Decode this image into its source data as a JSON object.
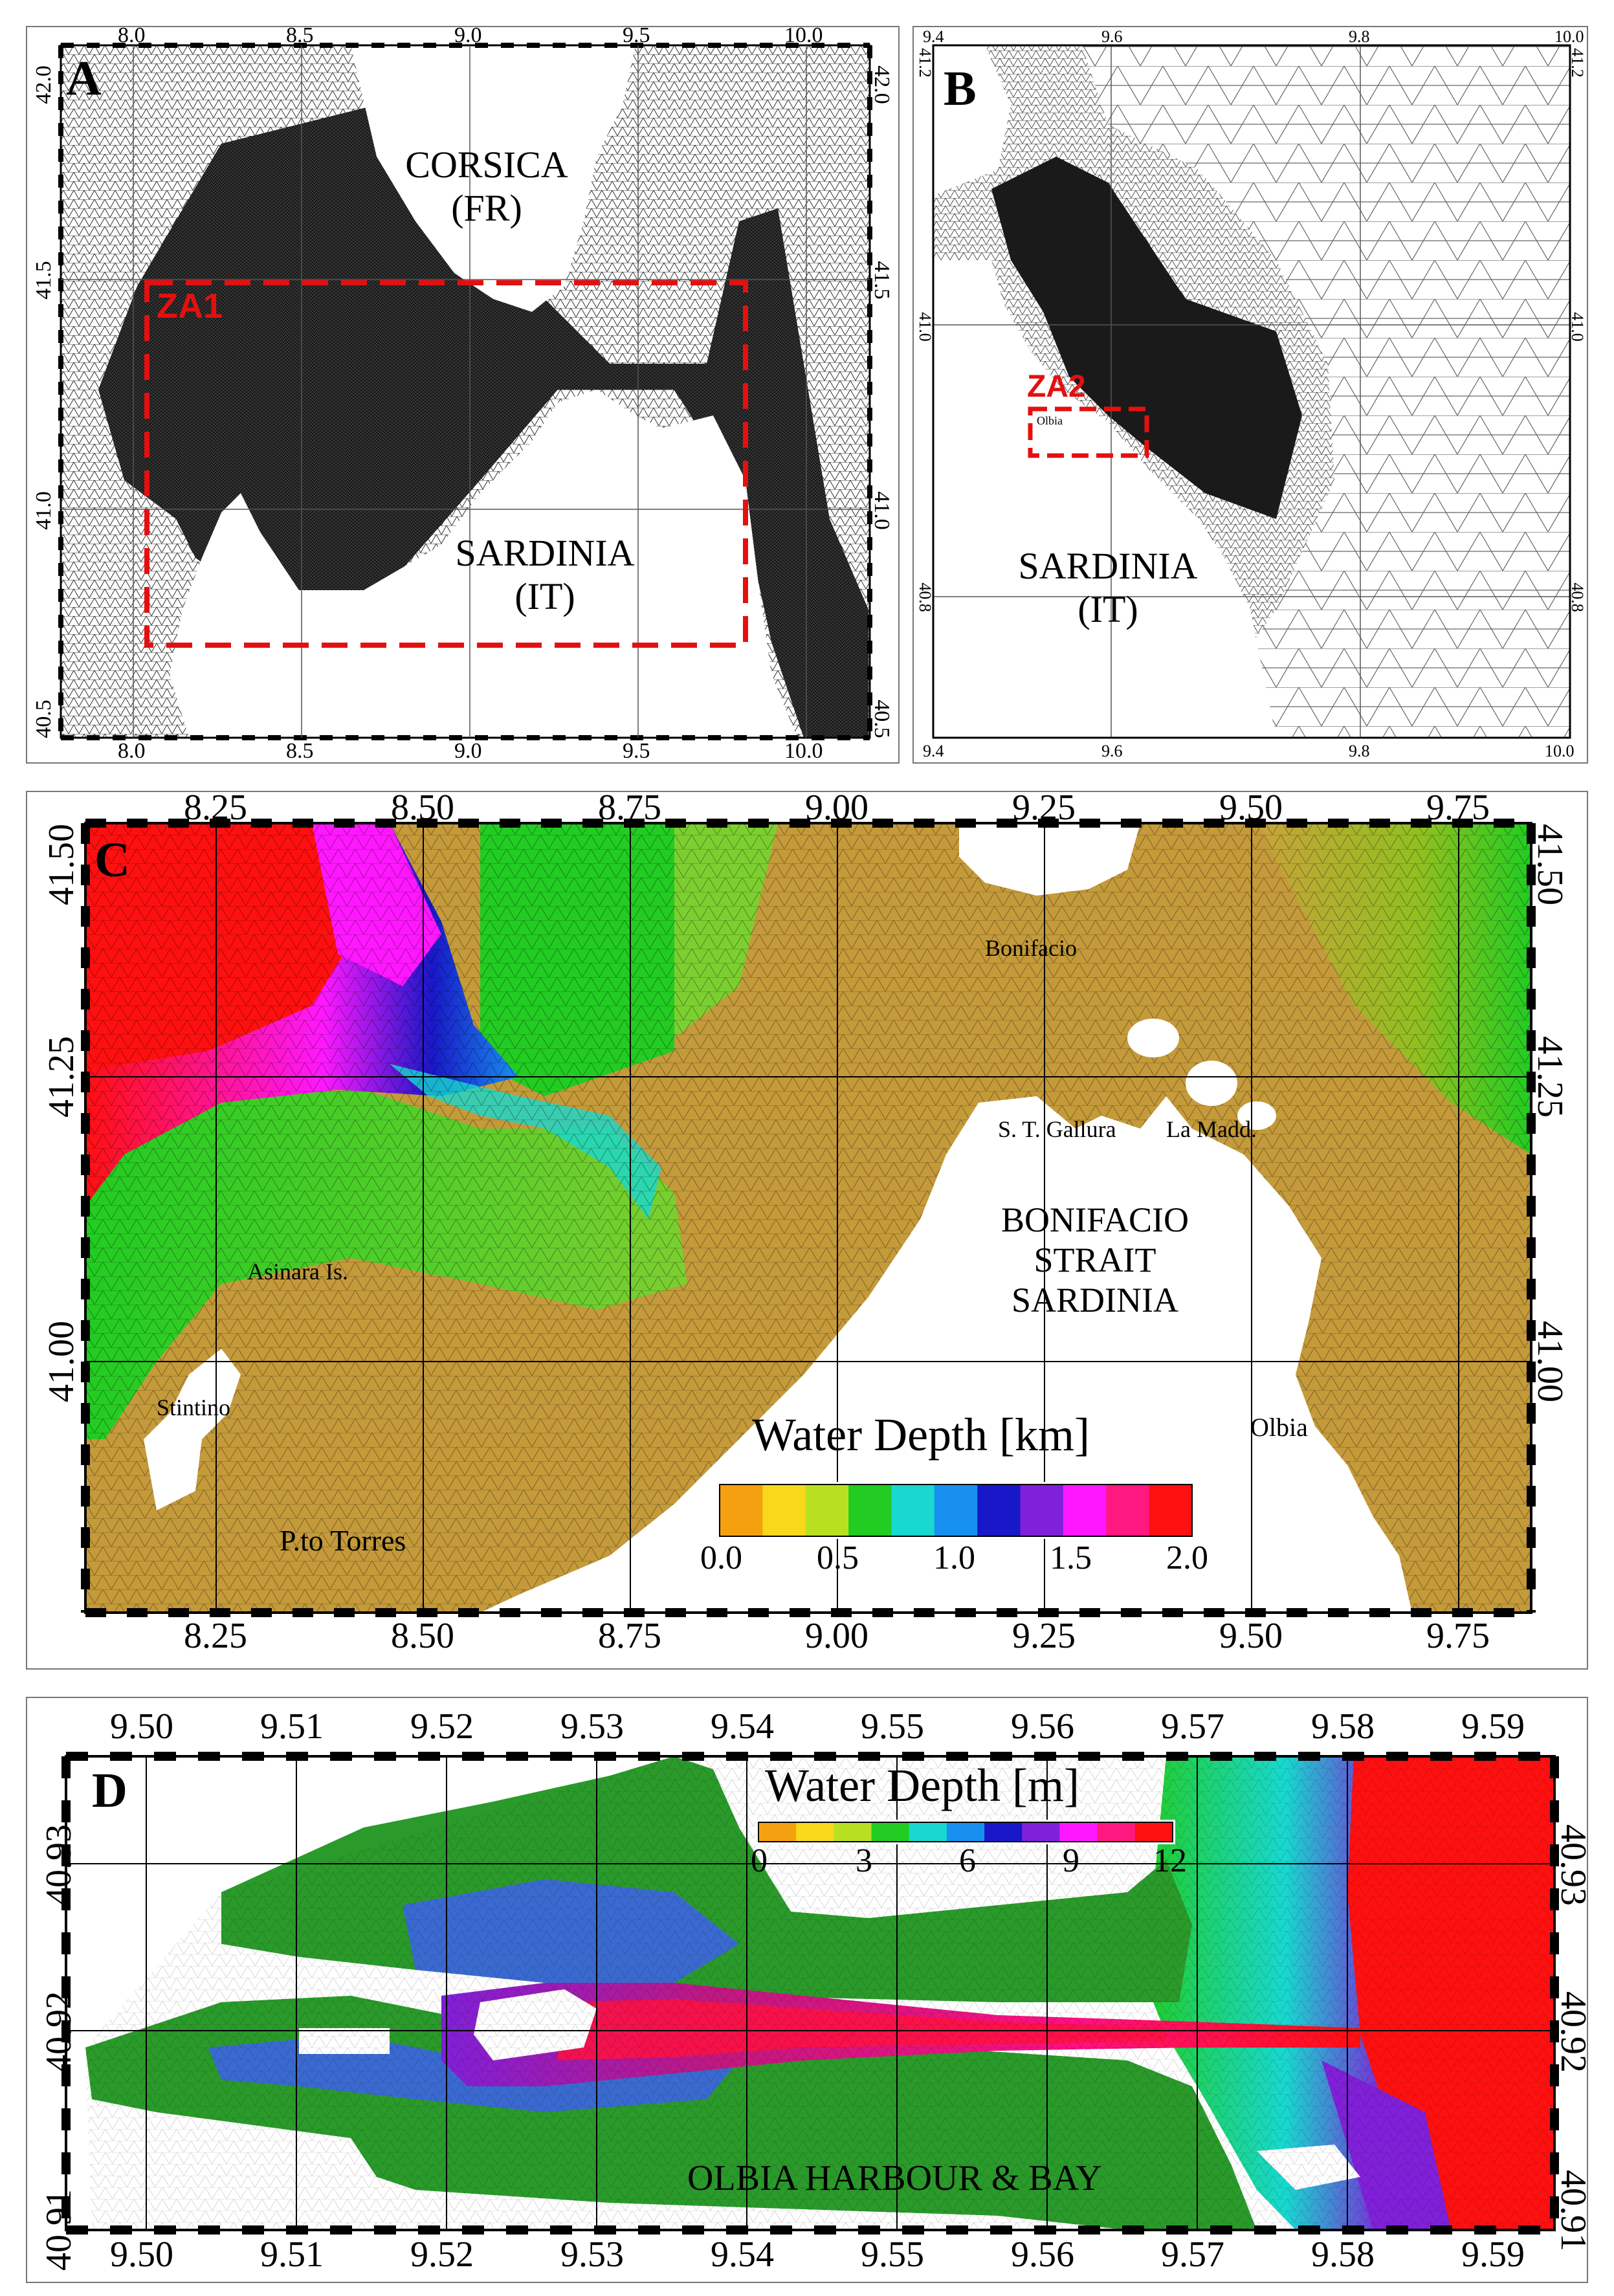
{
  "panels": {
    "A": {
      "label": "A",
      "lon_ticks": [
        "8.0",
        "8.5",
        "9.0",
        "9.5",
        "10.0"
      ],
      "lat_ticks": [
        "42.0",
        "41.5",
        "41.0",
        "40.5"
      ],
      "box_label": "ZA1",
      "region_top": [
        "CORSICA",
        "(FR)"
      ],
      "region_bottom": [
        "SARDINIA",
        "(IT)"
      ]
    },
    "B": {
      "label": "B",
      "lon_ticks": [
        "9.4",
        "9.6",
        "9.8",
        "10.0"
      ],
      "lat_ticks": [
        "41.2",
        "41.0",
        "40.8"
      ],
      "box_label": "ZA2",
      "place": "Olbia",
      "region": [
        "SARDINIA",
        "(IT)"
      ]
    },
    "C": {
      "label": "C",
      "lon_ticks": [
        "8.25",
        "8.50",
        "8.75",
        "9.00",
        "9.25",
        "9.50",
        "9.75"
      ],
      "lat_ticks": [
        "41.50",
        "41.25",
        "41.00"
      ],
      "places": {
        "bonifacio": "Bonifacio",
        "santa_teresa": "S. T. Gallura",
        "la_madd": "La Madd.",
        "asinara": "Asinara Is.",
        "stintino": "Stintino",
        "porto_torres": "P.to Torres",
        "olbia": "Olbia"
      },
      "region": [
        "BONIFACIO",
        "STRAIT",
        "SARDINIA"
      ],
      "colorbar": {
        "title": "Water Depth [km]",
        "ticks": [
          "0.0",
          "0.5",
          "1.0",
          "1.5",
          "2.0"
        ],
        "colors": [
          "#f5a010",
          "#f8d81a",
          "#b8e020",
          "#22cc22",
          "#18d8d0",
          "#1890f0",
          "#1818c8",
          "#8020d8",
          "#ff18ff",
          "#ff1880",
          "#ff1010"
        ]
      }
    },
    "D": {
      "label": "D",
      "lon_ticks": [
        "9.50",
        "9.51",
        "9.52",
        "9.53",
        "9.54",
        "9.55",
        "9.56",
        "9.57",
        "9.58",
        "9.59"
      ],
      "lat_ticks": [
        "40.93",
        "40.92",
        "40.91"
      ],
      "region": "OLBIA HARBOUR & BAY",
      "colorbar": {
        "title": "Water Depth [m]",
        "ticks": [
          "0",
          "3",
          "6",
          "9",
          "12"
        ],
        "colors": [
          "#f5a010",
          "#f8d81a",
          "#b8e020",
          "#22cc22",
          "#18d8d0",
          "#1890f0",
          "#1818c8",
          "#8020d8",
          "#ff18ff",
          "#ff1880",
          "#ff1010"
        ]
      }
    }
  }
}
